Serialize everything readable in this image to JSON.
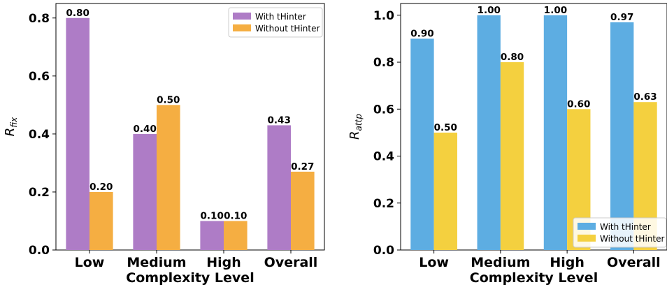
{
  "chart_data": [
    {
      "type": "bar",
      "title": "",
      "xlabel": "Complexity Level",
      "ylabel_main": "R",
      "ylabel_sub": "fix",
      "categories": [
        "Low",
        "Medium",
        "High",
        "Overall"
      ],
      "ylim": [
        0,
        0.85
      ],
      "yticks": [
        "0.0",
        "0.2",
        "0.4",
        "0.6",
        "0.8"
      ],
      "series": [
        {
          "name": "With tHinter",
          "color": "#ae7cc6",
          "values": [
            0.8,
            0.4,
            0.1,
            0.43
          ],
          "labels": [
            "0.80",
            "0.40",
            "0.10",
            "0.43"
          ]
        },
        {
          "name": "Without tHinter",
          "color": "#f5ae42",
          "values": [
            0.2,
            0.5,
            0.1,
            0.27
          ],
          "labels": [
            "0.20",
            "0.50",
            "0.10",
            "0.27"
          ]
        }
      ],
      "legend": "top-right",
      "grid": false
    },
    {
      "type": "bar",
      "title": "",
      "xlabel": "Complexity Level",
      "ylabel_main": "R",
      "ylabel_sub": "attp",
      "categories": [
        "Low",
        "Medium",
        "High",
        "Overall"
      ],
      "ylim": [
        0,
        1.05
      ],
      "yticks": [
        "0.0",
        "0.2",
        "0.4",
        "0.6",
        "0.8",
        "1.0"
      ],
      "series": [
        {
          "name": "With tHinter",
          "color": "#5dade2",
          "values": [
            0.9,
            1.0,
            1.0,
            0.97
          ],
          "labels": [
            "0.90",
            "1.00",
            "1.00",
            "0.97"
          ]
        },
        {
          "name": "Without tHinter",
          "color": "#f4d03f",
          "values": [
            0.5,
            0.8,
            0.6,
            0.63
          ],
          "labels": [
            "0.50",
            "0.80",
            "0.60",
            "0.63"
          ]
        }
      ],
      "legend": "bottom-right",
      "grid": false
    }
  ]
}
